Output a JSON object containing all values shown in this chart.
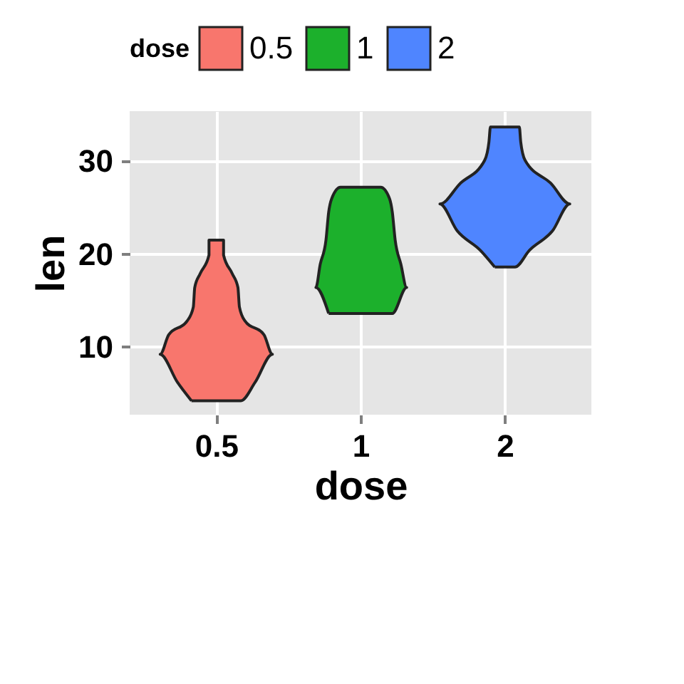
{
  "chart_data": {
    "type": "area",
    "xlabel": "dose",
    "ylabel": "len",
    "legend_title": "dose",
    "legend": "top",
    "grid": true,
    "log": "x",
    "xlim": [
      0.33,
      3.03
    ],
    "xticks": [
      0.5,
      1,
      2
    ],
    "ylim": [
      2.7,
      35.4
    ],
    "yticks": [
      10,
      20,
      30
    ],
    "series": [
      {
        "name": "0.5",
        "color": "#f8766d",
        "x": [
          0.444,
          0.415,
          0.382,
          0.398,
          0.435,
          0.448,
          0.451,
          0.463,
          0.483,
          0.483,
          0.518,
          0.518,
          0.54,
          0.555,
          0.559,
          0.574,
          0.629,
          0.655,
          0.603,
          0.563
        ],
        "values": [
          4.2,
          6.2,
          9.2,
          11.3,
          12.8,
          14.3,
          16.4,
          17.9,
          19.9,
          21.5,
          21.5,
          19.9,
          17.9,
          16.4,
          14.3,
          12.8,
          11.3,
          9.2,
          6.2,
          4.2
        ]
      },
      {
        "name": "1",
        "color": "#1cb02c",
        "x": [
          0.858,
          0.807,
          0.824,
          0.847,
          0.858,
          0.871,
          0.908,
          1.102,
          1.149,
          1.165,
          1.181,
          1.214,
          1.248,
          1.165
        ],
        "values": [
          13.6,
          16.4,
          18.9,
          21.5,
          24.5,
          26.0,
          27.2,
          27.2,
          26.0,
          24.5,
          21.5,
          18.9,
          16.4,
          13.6
        ]
      },
      {
        "name": "2",
        "color": "#4f85ff",
        "x": [
          1.905,
          1.778,
          1.591,
          1.464,
          1.613,
          1.815,
          1.853,
          1.866,
          2.144,
          2.158,
          2.204,
          2.497,
          2.732,
          2.514,
          2.25,
          2.099
        ],
        "values": [
          18.6,
          20.4,
          22.5,
          25.4,
          27.6,
          30.1,
          32.1,
          33.7,
          33.7,
          32.1,
          30.1,
          27.6,
          25.4,
          22.5,
          20.4,
          18.6
        ]
      }
    ]
  }
}
